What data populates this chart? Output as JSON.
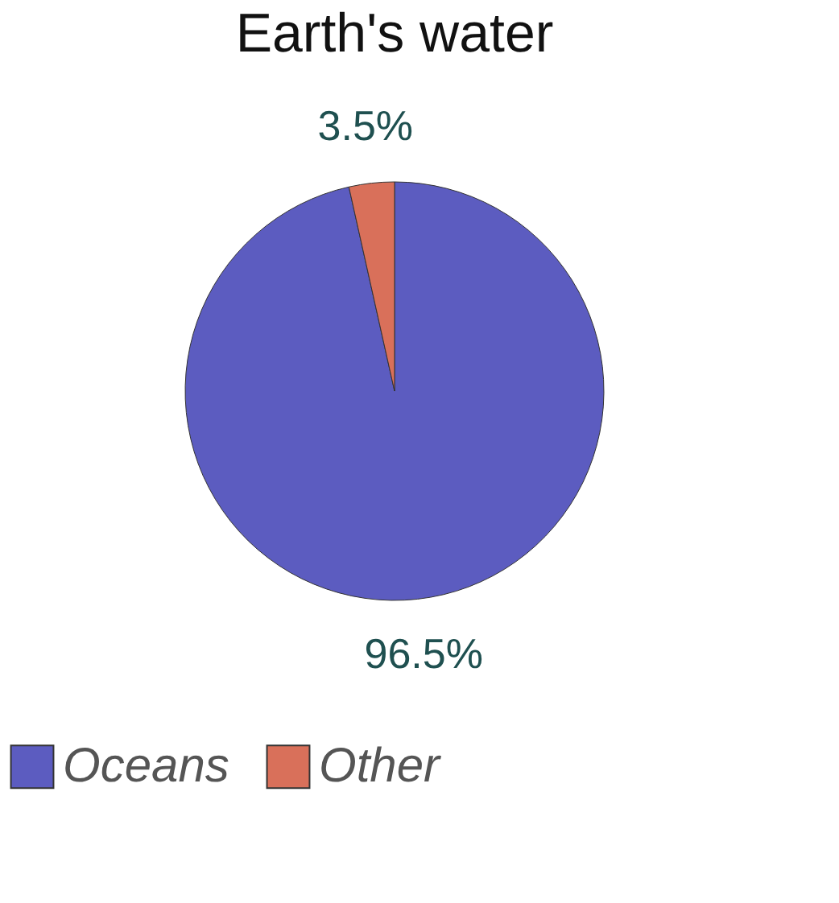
{
  "chart_data": {
    "type": "pie",
    "title": "Earth's water",
    "categories": [
      "Oceans",
      "Other"
    ],
    "values": [
      96.5,
      3.5
    ],
    "value_labels": [
      "96.5%",
      "3.5%"
    ],
    "colors": [
      "#5c5cc0",
      "#d9705a"
    ],
    "legend": "bottom"
  }
}
